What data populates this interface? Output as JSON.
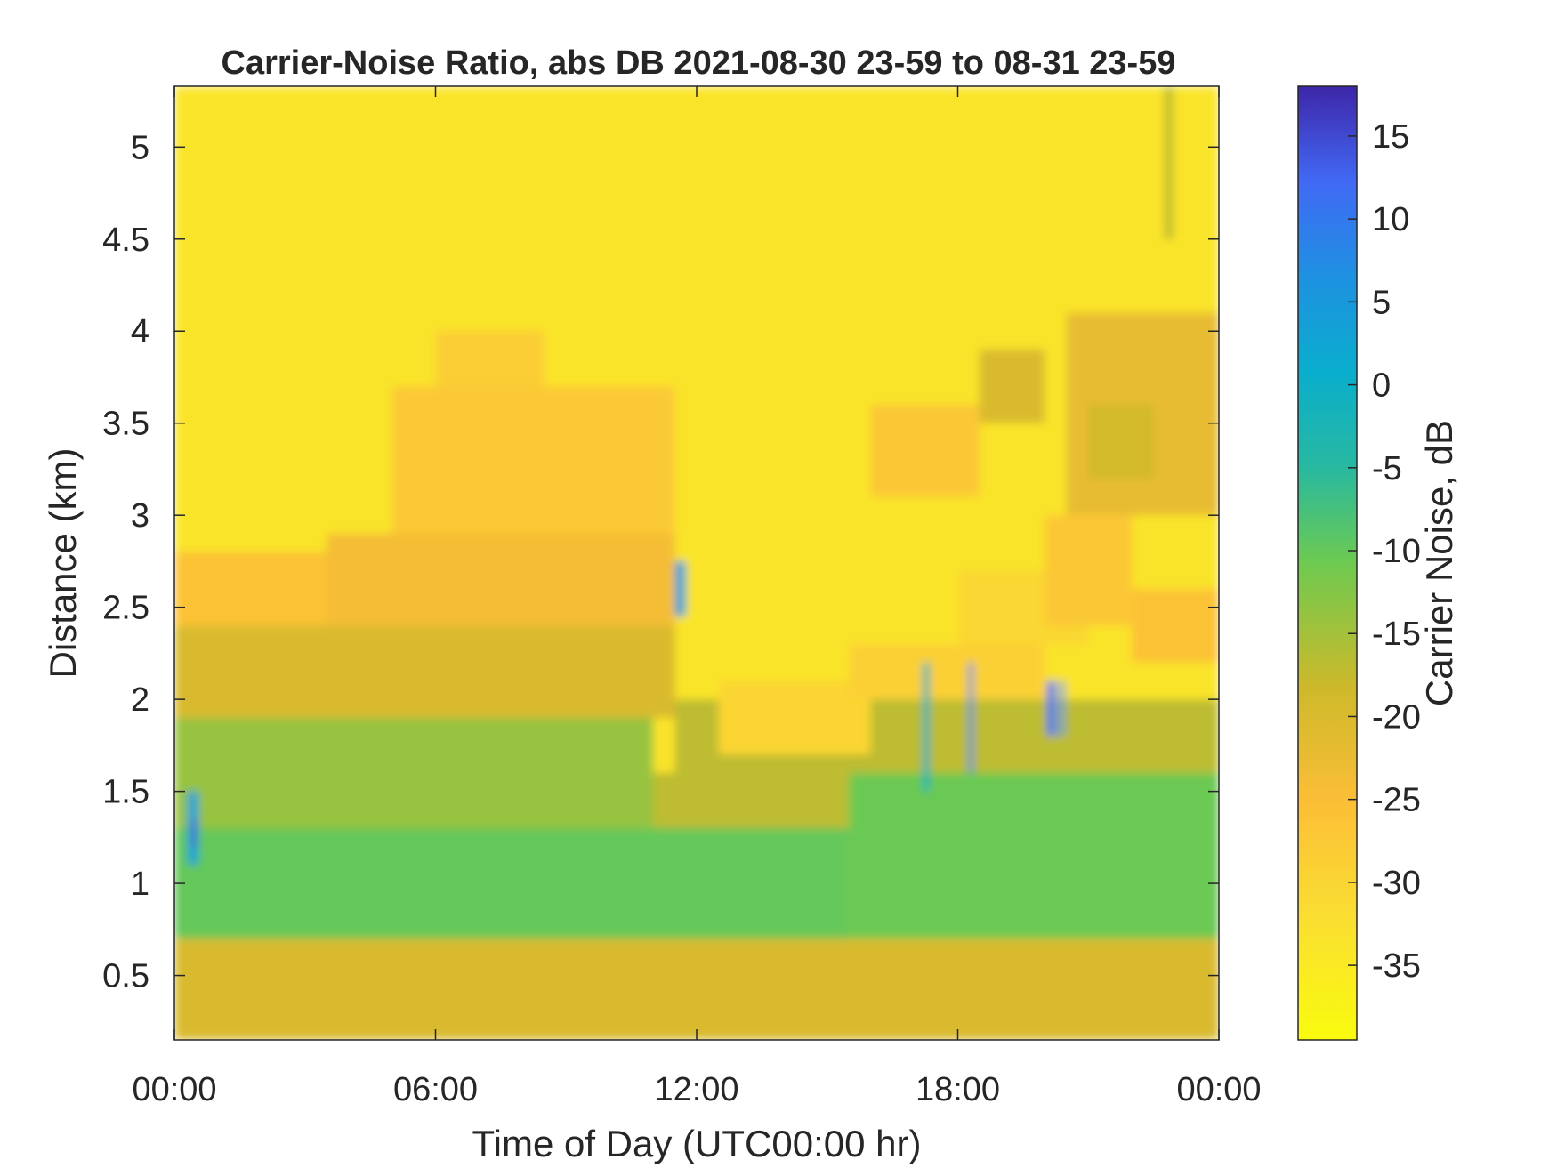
{
  "chart_data": {
    "type": "heatmap",
    "title": "Carrier-Noise Ratio, abs DB 2021-08-30 23-59 to 08-31 23-59",
    "xlabel": "Time of Day (UTC00:00 hr)",
    "ylabel": "Distance (km)",
    "colorbar_label": "Carrier Noise, dB",
    "xlim_hours": [
      0,
      24
    ],
    "ylim_km": [
      0.15,
      5.33
    ],
    "clim_db": [
      -39.5,
      18
    ],
    "colormap": "parula (reversed: yellow low, dark blue high)",
    "grid": false,
    "x_ticks": [
      {
        "value": 0,
        "label": "00:00"
      },
      {
        "value": 6,
        "label": "06:00"
      },
      {
        "value": 12,
        "label": "12:00"
      },
      {
        "value": 18,
        "label": "18:00"
      },
      {
        "value": 24,
        "label": "00:00"
      }
    ],
    "y_ticks": [
      {
        "value": 0.5,
        "label": "0.5"
      },
      {
        "value": 1,
        "label": "1"
      },
      {
        "value": 1.5,
        "label": "1.5"
      },
      {
        "value": 2,
        "label": "2"
      },
      {
        "value": 2.5,
        "label": "2.5"
      },
      {
        "value": 3,
        "label": "3"
      },
      {
        "value": 3.5,
        "label": "3.5"
      },
      {
        "value": 4,
        "label": "4"
      },
      {
        "value": 4.5,
        "label": "4.5"
      },
      {
        "value": 5,
        "label": "5"
      }
    ],
    "colorbar_ticks": [
      {
        "value": 15,
        "label": "15"
      },
      {
        "value": 10,
        "label": "10"
      },
      {
        "value": 5,
        "label": "5"
      },
      {
        "value": 0,
        "label": "0"
      },
      {
        "value": -5,
        "label": "-5"
      },
      {
        "value": -10,
        "label": "-10"
      },
      {
        "value": -15,
        "label": "-15"
      },
      {
        "value": -20,
        "label": "-20"
      },
      {
        "value": -25,
        "label": "-25"
      },
      {
        "value": -30,
        "label": "-30"
      },
      {
        "value": -35,
        "label": "-35"
      }
    ],
    "layers": [
      {
        "x": [
          0,
          24
        ],
        "y": [
          0.15,
          5.33
        ],
        "value": -33.5
      },
      {
        "x": [
          0,
          24
        ],
        "y": [
          0.15,
          0.7
        ],
        "value": -20
      },
      {
        "x": [
          0,
          15.5
        ],
        "y": [
          0.7,
          1.3
        ],
        "value": -10
      },
      {
        "x": [
          15.5,
          24
        ],
        "y": [
          0.7,
          1.6
        ],
        "value": -10.5
      },
      {
        "x": [
          0,
          11
        ],
        "y": [
          1.3,
          1.9
        ],
        "value": -14
      },
      {
        "x": [
          11,
          15.5
        ],
        "y": [
          1.3,
          1.6
        ],
        "value": -17
      },
      {
        "x": [
          0,
          11.5
        ],
        "y": [
          1.9,
          2.4
        ],
        "value": -20
      },
      {
        "x": [
          11.5,
          24
        ],
        "y": [
          1.6,
          2.0
        ],
        "value": -17
      },
      {
        "x": [
          0,
          3.5
        ],
        "y": [
          2.4,
          2.8
        ],
        "value": -26
      },
      {
        "x": [
          3.5,
          11.5
        ],
        "y": [
          2.4,
          2.9
        ],
        "value": -24
      },
      {
        "x": [
          5,
          11.5
        ],
        "y": [
          2.9,
          3.7
        ],
        "value": -27.5
      },
      {
        "x": [
          6,
          8.5
        ],
        "y": [
          3.7,
          4.0
        ],
        "value": -28.5
      },
      {
        "x": [
          12.5,
          16
        ],
        "y": [
          1.7,
          2.1
        ],
        "value": -30
      },
      {
        "x": [
          15.5,
          20
        ],
        "y": [
          2.0,
          2.3
        ],
        "value": -29
      },
      {
        "x": [
          16,
          18.5
        ],
        "y": [
          3.1,
          3.6
        ],
        "value": -27
      },
      {
        "x": [
          18.5,
          20
        ],
        "y": [
          3.5,
          3.9
        ],
        "value": -20
      },
      {
        "x": [
          18,
          21
        ],
        "y": [
          2.3,
          2.7
        ],
        "value": -30.5
      },
      {
        "x": [
          20,
          22
        ],
        "y": [
          2.4,
          3.0
        ],
        "value": -27
      },
      {
        "x": [
          20.5,
          24
        ],
        "y": [
          3.0,
          4.1
        ],
        "value": -22
      },
      {
        "x": [
          21,
          22.5
        ],
        "y": [
          3.2,
          3.6
        ],
        "value": -19
      },
      {
        "x": [
          22,
          24
        ],
        "y": [
          2.2,
          2.6
        ],
        "value": -26
      },
      {
        "x": [
          0.3,
          0.55
        ],
        "y": [
          1.1,
          1.5
        ],
        "value": 3
      },
      {
        "x": [
          0.4,
          0.5
        ],
        "y": [
          1.2,
          1.35
        ],
        "value": 14
      },
      {
        "x": [
          11.5,
          11.75
        ],
        "y": [
          2.45,
          2.75
        ],
        "value": 3
      },
      {
        "x": [
          17.2,
          17.35
        ],
        "y": [
          1.5,
          2.2
        ],
        "value": -2
      },
      {
        "x": [
          18.25,
          18.35
        ],
        "y": [
          1.6,
          2.2
        ],
        "value": 8
      },
      {
        "x": [
          20.05,
          20.25
        ],
        "y": [
          1.8,
          2.1
        ],
        "value": 11
      },
      {
        "x": [
          20.35,
          20.45
        ],
        "y": [
          1.8,
          2.1
        ],
        "value": 6
      },
      {
        "x": [
          22.75,
          22.95
        ],
        "y": [
          4.5,
          5.33
        ],
        "value": -17
      }
    ]
  }
}
